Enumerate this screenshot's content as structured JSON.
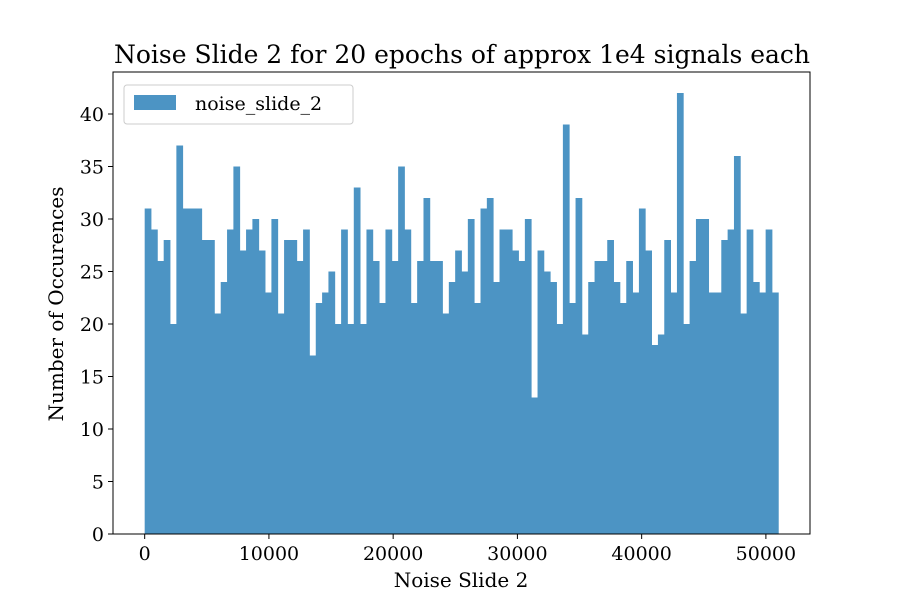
{
  "chart_data": {
    "type": "bar",
    "title": "Noise Slide 2 for 20 epochs of approx 1e4 signals each",
    "xlabel": "Noise Slide 2",
    "ylabel": "Number of Occurences",
    "xlim": [
      -2550,
      53550
    ],
    "ylim": [
      0,
      44
    ],
    "xticks": [
      0,
      10000,
      20000,
      30000,
      40000,
      50000
    ],
    "yticks": [
      0,
      5,
      10,
      15,
      20,
      25,
      30,
      35,
      40
    ],
    "grid": false,
    "legend_position": "upper-left",
    "series": [
      {
        "name": "noise_slide_2",
        "color": "#4c94c4",
        "bin_start": 0,
        "bin_width": 510,
        "values": [
          31,
          29,
          26,
          28,
          20,
          37,
          31,
          31,
          31,
          28,
          28,
          21,
          24,
          29,
          35,
          27,
          29,
          30,
          27,
          23,
          30,
          21,
          28,
          28,
          26,
          29,
          17,
          22,
          23,
          25,
          20,
          29,
          20,
          33,
          20,
          29,
          26,
          22,
          29,
          26,
          35,
          29,
          22,
          26,
          32,
          26,
          26,
          21,
          24,
          27,
          25,
          30,
          22,
          31,
          32,
          24,
          29,
          29,
          27,
          26,
          30,
          13,
          27,
          25,
          24,
          20,
          39,
          22,
          32,
          19,
          24,
          26,
          26,
          28,
          24,
          22,
          26,
          23,
          31,
          27,
          18,
          19,
          28,
          23,
          42,
          20,
          26,
          30,
          30,
          23,
          23,
          28,
          29,
          36,
          21,
          29,
          24,
          23,
          29,
          23
        ]
      }
    ]
  }
}
